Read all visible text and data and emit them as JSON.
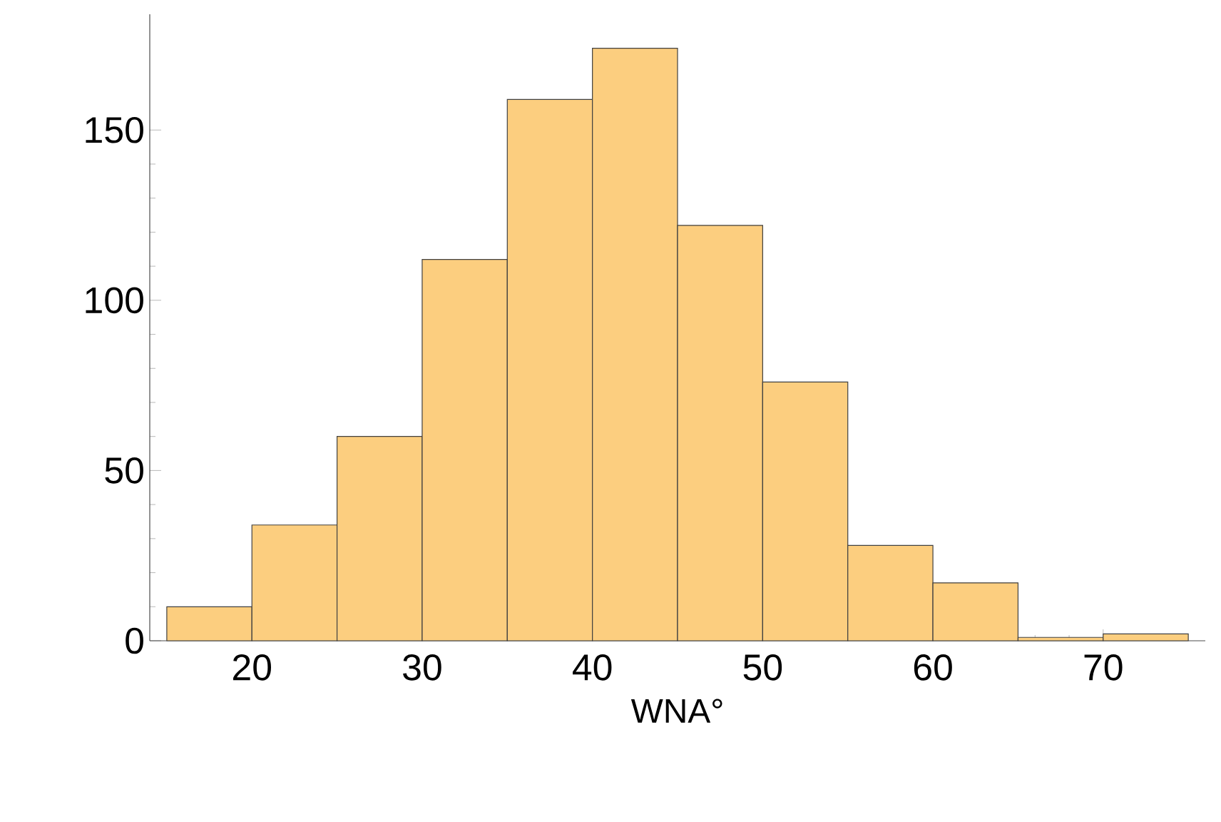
{
  "chart_data": {
    "type": "histogram",
    "xlabel": "WNA°",
    "bins": [
      15,
      20,
      25,
      30,
      35,
      40,
      45,
      50,
      55,
      60,
      65,
      70,
      75
    ],
    "values": [
      10,
      34,
      60,
      112,
      159,
      174,
      122,
      76,
      28,
      17,
      1,
      2
    ],
    "color": "#fcce7f",
    "xlim": [
      14,
      76
    ],
    "xticks": [
      20,
      30,
      40,
      50,
      60,
      70
    ],
    "ylim": [
      0,
      184
    ],
    "yticks": [
      0,
      50,
      100,
      150
    ]
  }
}
